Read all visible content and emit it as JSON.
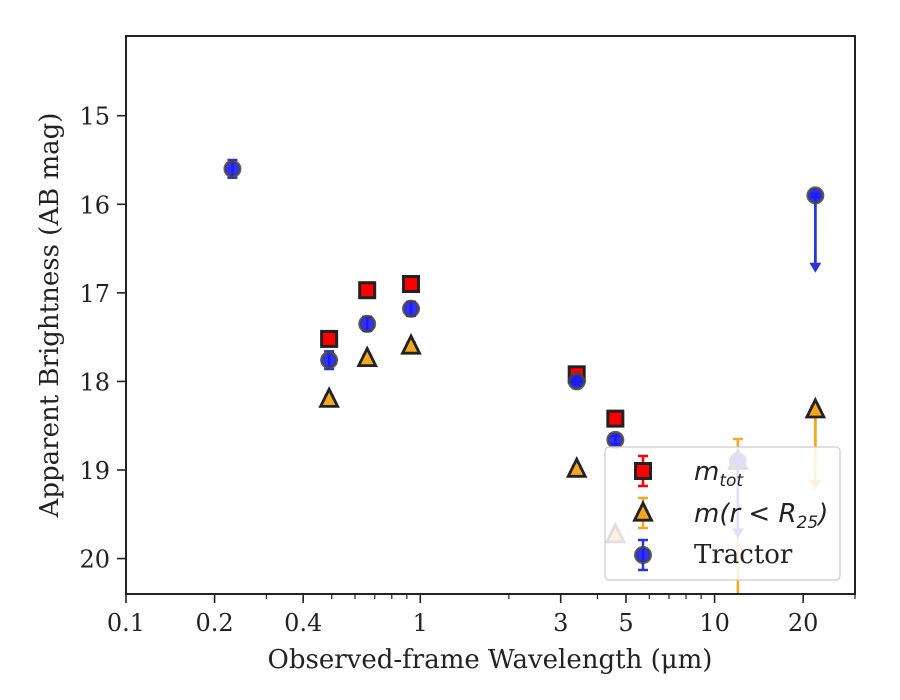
{
  "chart_data": {
    "type": "scatter",
    "xlabel": "Observed-frame Wavelength (μm)",
    "ylabel": "Apparent Brightness (AB mag)",
    "x_scale": "log",
    "xlim": [
      0.1,
      30
    ],
    "ylim": [
      20.4,
      14.1
    ],
    "y_inverted": true,
    "x_ticks": [
      {
        "value": 0.1,
        "label": "0.1"
      },
      {
        "value": 0.2,
        "label": "0.2"
      },
      {
        "value": 0.4,
        "label": "0.4"
      },
      {
        "value": 1,
        "label": "1"
      },
      {
        "value": 3,
        "label": "3"
      },
      {
        "value": 5,
        "label": "5"
      },
      {
        "value": 10,
        "label": "10"
      },
      {
        "value": 20,
        "label": "20"
      }
    ],
    "y_ticks": [
      {
        "value": 15,
        "label": "15"
      },
      {
        "value": 16,
        "label": "16"
      },
      {
        "value": 17,
        "label": "17"
      },
      {
        "value": 18,
        "label": "18"
      },
      {
        "value": 19,
        "label": "19"
      },
      {
        "value": 20,
        "label": "20"
      }
    ],
    "grid": false,
    "legend_position": "lower-right",
    "series": [
      {
        "name": "m_tot",
        "legend_label": {
          "base": "m",
          "sub": "tot"
        },
        "marker": "square",
        "color": "#ff0000",
        "edge_color": "#222222",
        "errbar_color": "#ff0000",
        "points": [
          {
            "x": 0.49,
            "y": 17.52,
            "err": 0.05
          },
          {
            "x": 0.66,
            "y": 16.97,
            "err": 0.05
          },
          {
            "x": 0.93,
            "y": 16.9,
            "err": 0.05
          },
          {
            "x": 3.4,
            "y": 17.92,
            "err": 0.05
          },
          {
            "x": 4.6,
            "y": 18.42,
            "err": 0.06
          }
        ]
      },
      {
        "name": "m(r < R25)",
        "legend_label": {
          "base": "m(r < R",
          "sub": "25",
          "suffix": ")"
        },
        "marker": "triangle",
        "color": "#f5a623",
        "edge_color": "#222222",
        "errbar_color": "#f5a623",
        "points": [
          {
            "x": 0.49,
            "y": 18.2,
            "err": 0.04
          },
          {
            "x": 0.66,
            "y": 17.74,
            "err": 0.04
          },
          {
            "x": 0.93,
            "y": 17.6,
            "err": 0.04
          },
          {
            "x": 3.4,
            "y": 18.99,
            "err": 0.04
          },
          {
            "x": 4.6,
            "y": 19.73,
            "err": 0.05
          },
          {
            "x": 12,
            "y": 18.9,
            "err": 0.25,
            "lower_error_to": 20.4
          },
          {
            "x": 22,
            "y": 18.32,
            "err": 0.04,
            "limit_to": 19.2
          }
        ]
      },
      {
        "name": "Tractor",
        "legend_label": {
          "base": "Tractor"
        },
        "marker": "circle",
        "color": "#1a1aff",
        "edge_color": "#444444",
        "errbar_color": "#2a35d8",
        "points": [
          {
            "x": 0.23,
            "y": 15.6,
            "err": 0.1
          },
          {
            "x": 0.49,
            "y": 17.76,
            "err": 0.1
          },
          {
            "x": 0.66,
            "y": 17.35,
            "err": 0.08
          },
          {
            "x": 0.93,
            "y": 17.18,
            "err": 0.08
          },
          {
            "x": 3.4,
            "y": 18.0,
            "err": 0.04
          },
          {
            "x": 4.6,
            "y": 18.66,
            "err": 0.05
          },
          {
            "x": 12,
            "y": 18.9,
            "err": 0.04,
            "limit_to": 19.75
          },
          {
            "x": 22,
            "y": 15.9,
            "err": 0.02,
            "limit_to": 16.75
          }
        ]
      }
    ]
  }
}
